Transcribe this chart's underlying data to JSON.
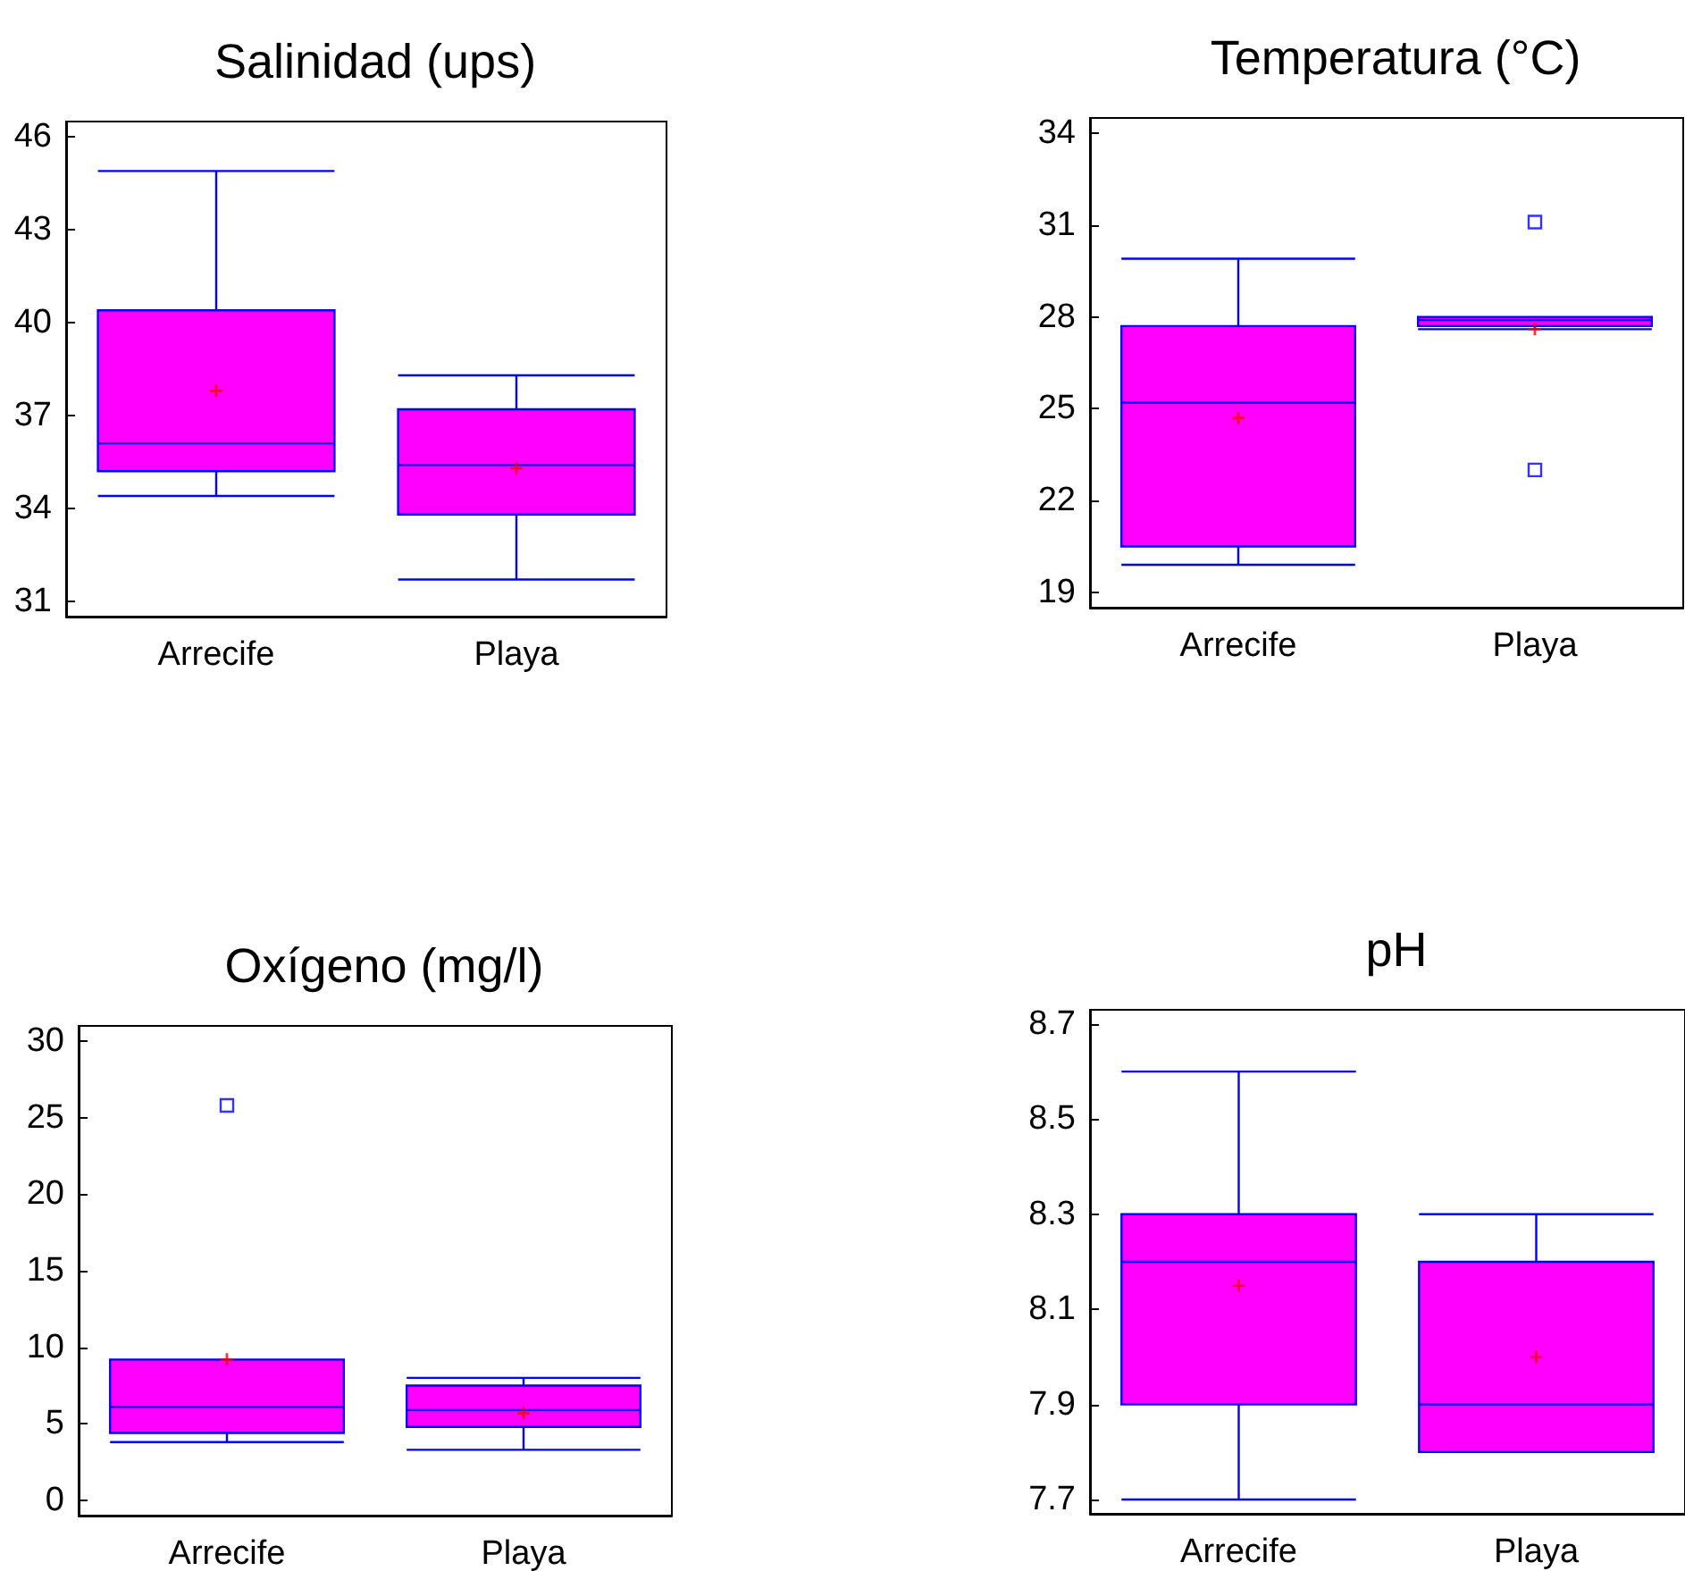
{
  "chart_data": [
    {
      "type": "box",
      "title": "Salinidad (ups)",
      "categories": [
        "Arrecife",
        "Playa"
      ],
      "color": "#ff00ff",
      "ylim": [
        30.5,
        46.5
      ],
      "yticks": [
        31,
        34,
        37,
        40,
        43,
        46
      ],
      "grid": false,
      "boxes": [
        {
          "low": 34.4,
          "q1": 35.2,
          "median": 36.1,
          "q3": 40.4,
          "high": 44.9,
          "mean": 37.8
        },
        {
          "low": 31.7,
          "q1": 33.8,
          "median": 35.4,
          "q3": 37.2,
          "high": 38.3,
          "mean": 35.3
        }
      ]
    },
    {
      "type": "box",
      "title": "Temperatura (°C)",
      "categories": [
        "Arrecife",
        "Playa"
      ],
      "color": "#ff00ff",
      "ylim": [
        18.5,
        34.5
      ],
      "yticks": [
        19,
        22,
        25,
        28,
        31,
        34
      ],
      "grid": false,
      "boxes": [
        {
          "low": 19.9,
          "q1": 20.5,
          "median": 25.2,
          "q3": 27.7,
          "high": 29.9,
          "mean": 24.7
        },
        {
          "low": 27.6,
          "q1": 27.7,
          "median": 27.9,
          "q3": 28.0,
          "high": 28.0,
          "mean": 27.6,
          "outliers": [
            31.1,
            23.0
          ]
        }
      ]
    },
    {
      "type": "box",
      "title": "Oxígeno (mg/l)",
      "categories": [
        "Arrecife",
        "Playa"
      ],
      "color": "#ff00ff",
      "ylim": [
        -1,
        31
      ],
      "yticks": [
        0,
        5,
        10,
        15,
        20,
        25,
        30
      ],
      "grid": false,
      "boxes": [
        {
          "low": 3.8,
          "q1": 4.4,
          "median": 6.1,
          "q3": 9.2,
          "high": 9.2,
          "mean": 9.2,
          "outliers": [
            25.8
          ]
        },
        {
          "low": 3.3,
          "q1": 4.8,
          "median": 5.9,
          "q3": 7.5,
          "high": 8.0,
          "mean": 5.7
        }
      ]
    },
    {
      "type": "box",
      "title": "pH",
      "categories": [
        "Arrecife",
        "Playa"
      ],
      "color": "#ff00ff",
      "ylim": [
        7.67,
        8.73
      ],
      "yticks": [
        7.7,
        7.9,
        8.1,
        8.3,
        8.5,
        8.7
      ],
      "grid": false,
      "boxes": [
        {
          "low": 7.7,
          "q1": 7.9,
          "median": 8.2,
          "q3": 8.3,
          "high": 8.6,
          "mean": 8.15
        },
        {
          "low": 7.8,
          "q1": 7.8,
          "median": 7.9,
          "q3": 8.2,
          "high": 8.3,
          "mean": 8.0
        }
      ]
    }
  ]
}
